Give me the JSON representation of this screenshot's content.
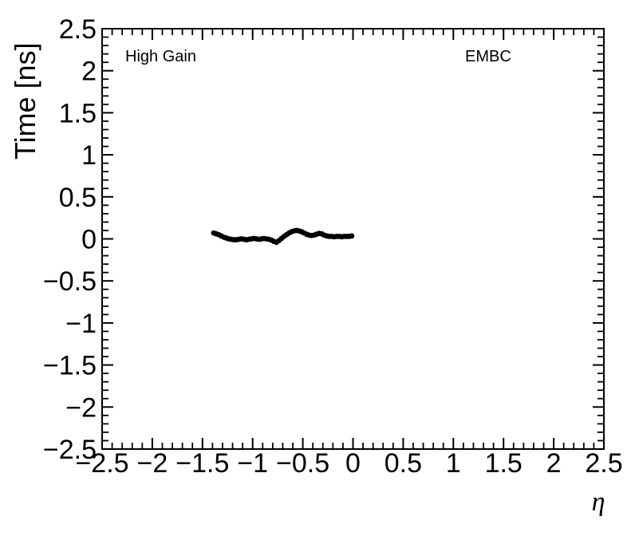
{
  "figure": {
    "background": "#ffffff",
    "frame_color": "#000000",
    "marker_color": "#000000"
  },
  "chart_data": {
    "type": "scatter",
    "title": "",
    "xlabel": "η",
    "ylabel": "Time [ns]",
    "xlim": [
      -2.5,
      2.5
    ],
    "ylim": [
      -2.5,
      2.5
    ],
    "grid": false,
    "legend": "none",
    "annotations": [
      {
        "id": "gain-label",
        "text": "High Gain"
      },
      {
        "id": "detector-label",
        "text": "EMBC"
      }
    ],
    "xticks": [
      -2.5,
      -2,
      -1.5,
      -1,
      -0.5,
      0,
      0.5,
      1,
      1.5,
      2,
      2.5
    ],
    "xtick_labels": [
      "−2.5",
      "−2",
      "−1.5",
      "−1",
      "−0.5",
      "0",
      "0.5",
      "1",
      "1.5",
      "2",
      "2.5"
    ],
    "yticks": [
      -2.5,
      -2,
      -1.5,
      -1,
      -0.5,
      0,
      0.5,
      1,
      1.5,
      2,
      2.5
    ],
    "ytick_labels": [
      "−2.5",
      "−2",
      "−1.5",
      "−1",
      "−0.5",
      "0",
      "0.5",
      "1",
      "1.5",
      "2",
      "2.5"
    ],
    "minor_tick_step": 0.1,
    "marker": {
      "shape": "circle",
      "color": "#000000",
      "radius_px": 3.4
    },
    "series": [
      {
        "name": "mean-time-vs-eta",
        "x": [
          -1.3875,
          -1.3625,
          -1.3375,
          -1.3125,
          -1.2875,
          -1.2625,
          -1.2375,
          -1.2125,
          -1.1875,
          -1.1625,
          -1.1375,
          -1.1125,
          -1.0875,
          -1.0625,
          -1.0375,
          -1.0125,
          -0.9875,
          -0.9625,
          -0.9375,
          -0.9125,
          -0.8875,
          -0.8625,
          -0.8375,
          -0.8125,
          -0.7875,
          -0.7625,
          -0.7375,
          -0.7125,
          -0.6875,
          -0.6625,
          -0.6375,
          -0.6125,
          -0.5875,
          -0.5625,
          -0.5375,
          -0.5125,
          -0.4875,
          -0.4625,
          -0.4375,
          -0.4125,
          -0.3875,
          -0.3625,
          -0.3375,
          -0.3125,
          -0.2875,
          -0.2625,
          -0.2375,
          -0.2125,
          -0.1875,
          -0.1625,
          -0.1375,
          -0.1125,
          -0.0875,
          -0.0625,
          -0.0375,
          -0.0125
        ],
        "y": [
          0.07,
          0.06,
          0.05,
          0.035,
          0.02,
          0.01,
          0.0,
          -0.005,
          -0.01,
          -0.01,
          -0.005,
          0.0,
          -0.005,
          -0.01,
          -0.005,
          0.0,
          0.005,
          0.0,
          -0.005,
          0.0,
          0.005,
          0.0,
          -0.005,
          -0.015,
          -0.03,
          -0.04,
          -0.02,
          0.005,
          0.03,
          0.05,
          0.07,
          0.085,
          0.095,
          0.1,
          0.095,
          0.085,
          0.07,
          0.055,
          0.045,
          0.04,
          0.045,
          0.055,
          0.065,
          0.06,
          0.045,
          0.035,
          0.03,
          0.03,
          0.025,
          0.03,
          0.03,
          0.025,
          0.03,
          0.03,
          0.03,
          0.035
        ]
      }
    ]
  }
}
